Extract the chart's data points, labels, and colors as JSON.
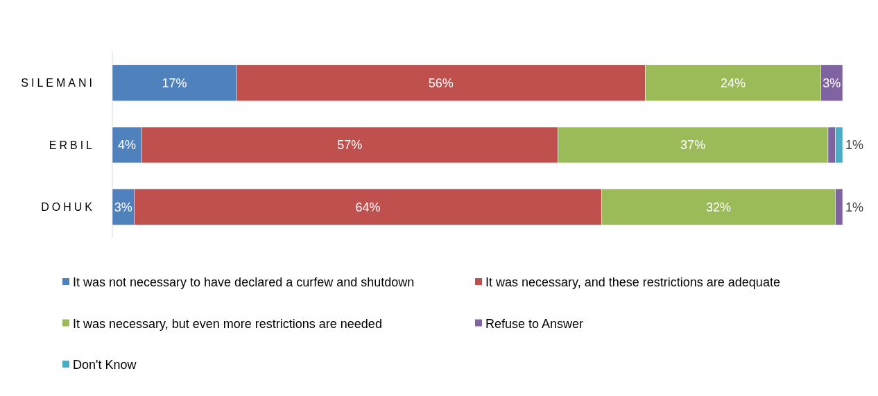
{
  "chart_data": {
    "type": "bar",
    "orientation": "horizontal",
    "stacked": true,
    "categories": [
      "SILEMANI",
      "ERBIL",
      "DOHUK"
    ],
    "legend": "bottom",
    "series": [
      {
        "name": "It was not necessary to have declared a curfew and shutdown",
        "color": "#4f81bd",
        "values": [
          17,
          4,
          3
        ],
        "value_labels": [
          "17%",
          "4%",
          "3%"
        ]
      },
      {
        "name": "It was necessary, and these restrictions are adequate",
        "color": "#c0504d",
        "values": [
          56,
          57,
          64
        ],
        "value_labels": [
          "56%",
          "57%",
          "64%"
        ]
      },
      {
        "name": "It was necessary, but even more restrictions are needed",
        "color": "#9bbb59",
        "values": [
          24,
          37,
          32
        ],
        "value_labels": [
          "24%",
          "37%",
          "32%"
        ]
      },
      {
        "name": "Refuse to Answer",
        "color": "#8064a2",
        "values": [
          3,
          1,
          1
        ],
        "value_labels": [
          "3%",
          "1%",
          "1%"
        ]
      },
      {
        "name": "Don't Know",
        "color": "#4bacc6",
        "values": [
          null,
          1,
          null
        ],
        "value_labels": [
          null,
          null,
          null
        ]
      }
    ]
  }
}
